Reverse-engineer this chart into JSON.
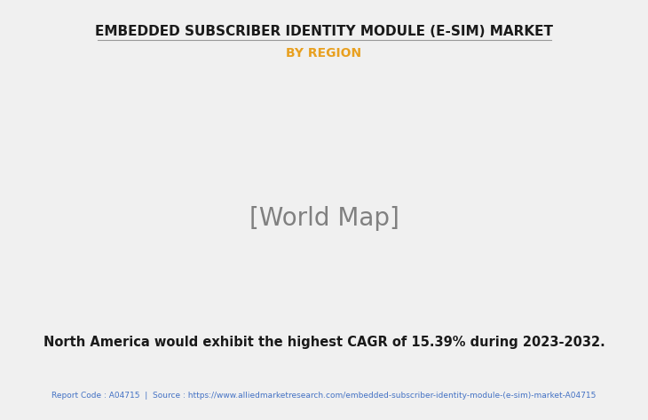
{
  "title": "EMBEDDED SUBSCRIBER IDENTITY MODULE (E-SIM) MARKET",
  "subtitle": "BY REGION",
  "subtitle_color": "#E8A020",
  "body_text": "North America would exhibit the highest CAGR of 15.39% during 2023-2032.",
  "footer_text": "Report Code : A04715  |  Source : https://www.alliedmarketresearch.com/embedded-subscriber-identity-module-(e-sim)-market-A04715",
  "footer_color": "#4472C4",
  "background_color": "#F0F0F0",
  "title_color": "#1a1a1a",
  "body_text_color": "#1a1a1a",
  "map_green_color": "#7EB87E",
  "map_highlight_color": "#E8E8E8",
  "map_shadow_color": "#999999"
}
